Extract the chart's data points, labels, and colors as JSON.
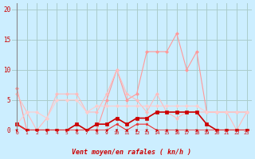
{
  "xlabel": "Vent moyen/en rafales ( kn/h )",
  "background_color": "#cceeff",
  "grid_color": "#aacccc",
  "x_ticks": [
    0,
    1,
    2,
    3,
    4,
    5,
    6,
    7,
    8,
    9,
    10,
    11,
    12,
    13,
    14,
    15,
    16,
    17,
    18,
    19,
    20,
    21,
    22,
    23
  ],
  "ylim": [
    0,
    21
  ],
  "yticks": [
    0,
    5,
    10,
    15,
    20
  ],
  "series": [
    {
      "values": [
        7,
        0,
        0,
        0,
        0,
        0,
        0,
        0,
        0,
        5,
        10,
        5,
        6,
        13,
        13,
        13,
        16,
        10,
        13,
        3,
        3,
        3,
        3,
        3
      ],
      "color": "#ff9999",
      "lw": 0.8,
      "marker": "D",
      "ms": 2.0
    },
    {
      "values": [
        6,
        3,
        0,
        2,
        6,
        6,
        6,
        3,
        3,
        6,
        10,
        6,
        5,
        3,
        6,
        3,
        2,
        3,
        3,
        3,
        3,
        3,
        0,
        3
      ],
      "color": "#ffbbbb",
      "lw": 0.8,
      "marker": "D",
      "ms": 2.0
    },
    {
      "values": [
        1,
        3,
        3,
        2,
        5,
        5,
        5,
        3,
        4,
        4,
        4,
        4,
        4,
        4,
        4,
        4,
        4,
        4,
        4,
        3,
        3,
        3,
        3,
        3
      ],
      "color": "#ffcccc",
      "lw": 0.8,
      "marker": "D",
      "ms": 2.0
    },
    {
      "values": [
        1,
        0,
        0,
        0,
        0,
        0,
        1,
        0,
        1,
        1,
        2,
        1,
        2,
        2,
        3,
        3,
        3,
        3,
        3,
        1,
        0,
        0,
        0,
        0
      ],
      "color": "#cc0000",
      "lw": 1.2,
      "marker": "s",
      "ms": 2.5
    },
    {
      "values": [
        1,
        0,
        0,
        0,
        0,
        0,
        0,
        0,
        0,
        0,
        1,
        0,
        1,
        1,
        0,
        0,
        0,
        0,
        0,
        0,
        0,
        0,
        0,
        0
      ],
      "color": "#ee3333",
      "lw": 0.8,
      "marker": "s",
      "ms": 2.0
    }
  ],
  "arrow_color": "#cc0000"
}
